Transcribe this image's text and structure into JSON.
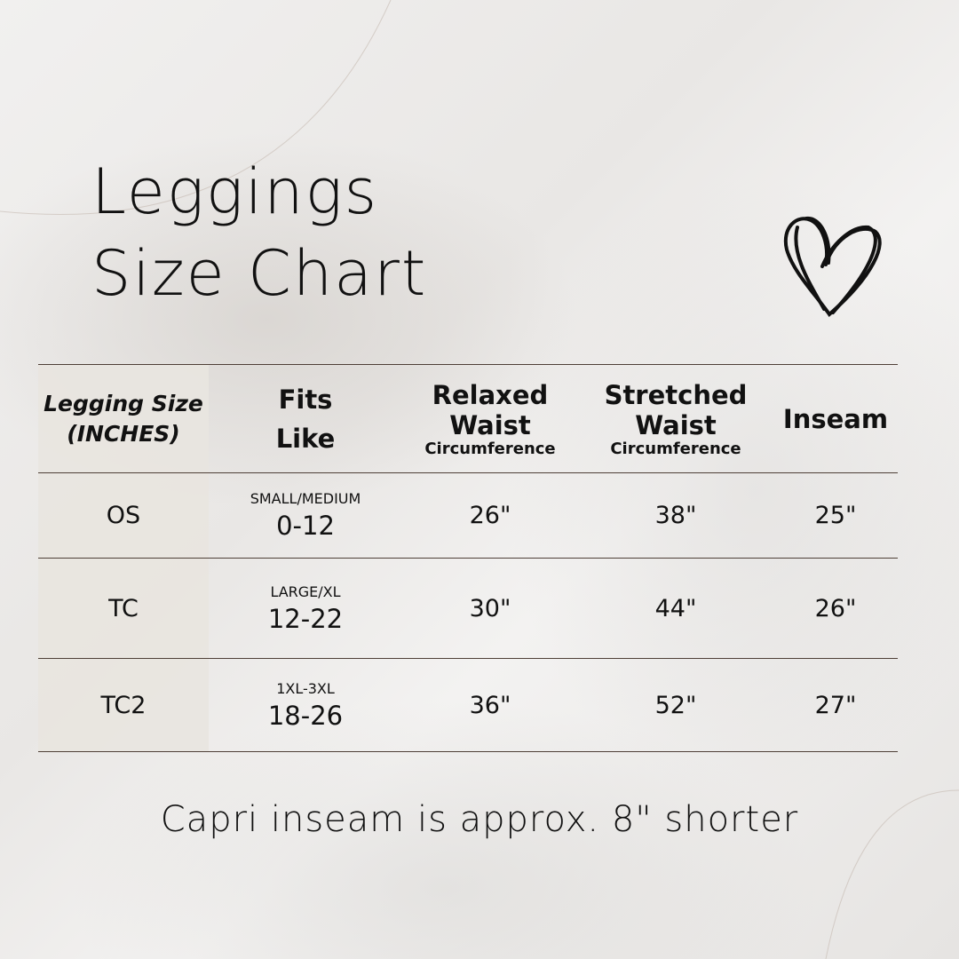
{
  "title": {
    "line1": "Leggings",
    "line2": "Size Chart"
  },
  "decoration": {
    "icon": "heart-icon"
  },
  "table": {
    "headers": [
      {
        "line1": "Legging Size",
        "line2": "(INCHES)"
      },
      {
        "line1": "Fits",
        "line2": "Like"
      },
      {
        "line1": "Relaxed",
        "line2": "Waist",
        "line3": "Circumference"
      },
      {
        "line1": "Stretched",
        "line2": "Waist",
        "line3": "Circumference"
      },
      {
        "line1": "Inseam"
      }
    ],
    "rows": [
      {
        "size": "OS",
        "fits_label": "SMALL/MEDIUM",
        "fits_range": "0-12",
        "relaxed": "26\"",
        "stretched": "38\"",
        "inseam": "25\""
      },
      {
        "size": "TC",
        "fits_label": "LARGE/XL",
        "fits_range": "12-22",
        "relaxed": "30\"",
        "stretched": "44\"",
        "inseam": "26\""
      },
      {
        "size": "TC2",
        "fits_label": "1XL-3XL",
        "fits_range": "18-26",
        "relaxed": "36\"",
        "stretched": "52\"",
        "inseam": "27\""
      }
    ]
  },
  "footer": "Capri inseam is approx. 8\" shorter",
  "colors": {
    "rule": "#4e3f37",
    "left_column": "#e8e5e0"
  }
}
